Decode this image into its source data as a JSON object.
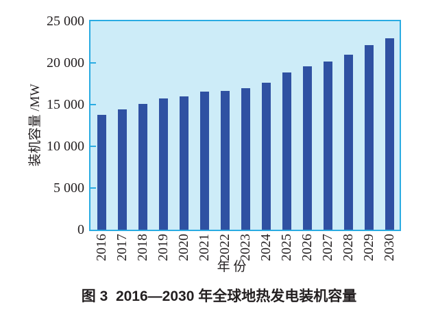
{
  "chart_data": {
    "type": "bar",
    "title": "",
    "caption": "图 3  2016—2030 年全球地热发电装机容量",
    "xlabel": "年 份",
    "ylabel": "装机容量 /MW",
    "unit": "MW",
    "categories": [
      "2016",
      "2017",
      "2018",
      "2019",
      "2020",
      "2021",
      "2022",
      "2023",
      "2024",
      "2025",
      "2026",
      "2027",
      "2028",
      "2029",
      "2030"
    ],
    "values": [
      13800,
      14450,
      15050,
      15750,
      16000,
      16550,
      16650,
      17000,
      17600,
      18850,
      19600,
      20150,
      21000,
      22100,
      22950
    ],
    "ylim": [
      0,
      25000
    ],
    "yticks": [
      {
        "value": 0,
        "label": "0"
      },
      {
        "value": 5000,
        "label": "5 000"
      },
      {
        "value": 10000,
        "label": "10 000"
      },
      {
        "value": 15000,
        "label": "15 000"
      },
      {
        "value": 20000,
        "label": "20 000"
      },
      {
        "value": 25000,
        "label": "25 000"
      }
    ],
    "grid": false,
    "legend": "none",
    "colors": {
      "bar": "#2f51a2",
      "plot_bg": "#cdecf8",
      "axis": "#29abe2",
      "text": "#231f20"
    }
  }
}
